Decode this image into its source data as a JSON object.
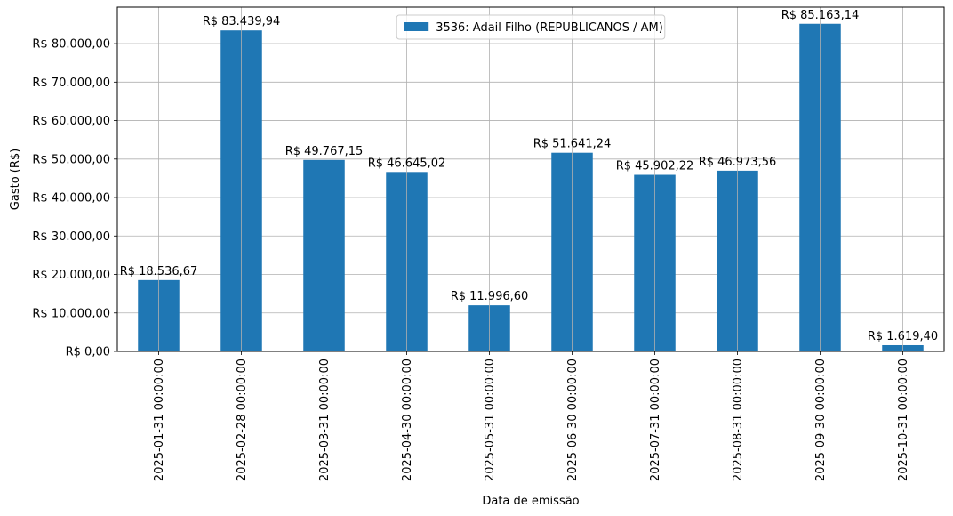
{
  "chart_data": {
    "type": "bar",
    "categories": [
      "2025-01-31 00:00:00",
      "2025-02-28 00:00:00",
      "2025-03-31 00:00:00",
      "2025-04-30 00:00:00",
      "2025-05-31 00:00:00",
      "2025-06-30 00:00:00",
      "2025-07-31 00:00:00",
      "2025-08-31 00:00:00",
      "2025-09-30 00:00:00",
      "2025-10-31 00:00:00"
    ],
    "series": [
      {
        "name": "3536: Adail Filho (REPUBLICANOS / AM)",
        "color": "#1f77b4",
        "values": [
          18536.67,
          83439.94,
          49767.15,
          46645.02,
          11996.6,
          51641.24,
          45902.22,
          46973.56,
          85163.14,
          1619.4
        ]
      }
    ],
    "data_labels": [
      "R$ 18.536,67",
      "R$ 83.439,94",
      "R$ 49.767,15",
      "R$ 46.645,02",
      "R$ 11.996,60",
      "R$ 51.641,24",
      "R$ 45.902,22",
      "R$ 46.973,56",
      "R$ 85.163,14",
      "R$ 1.619,40"
    ],
    "y_ticks": [
      0,
      10000,
      20000,
      30000,
      40000,
      50000,
      60000,
      70000,
      80000
    ],
    "y_tick_labels": [
      "R$ 0,00",
      "R$ 10.000,00",
      "R$ 20.000,00",
      "R$ 30.000,00",
      "R$ 40.000,00",
      "R$ 50.000,00",
      "R$ 60.000,00",
      "R$ 70.000,00",
      "R$ 80.000,00"
    ],
    "title": "",
    "xlabel": "Data de emissão",
    "ylabel": "Gasto (R$)",
    "ylim": [
      0,
      89500
    ],
    "grid": true,
    "legend_position": "top-center"
  }
}
